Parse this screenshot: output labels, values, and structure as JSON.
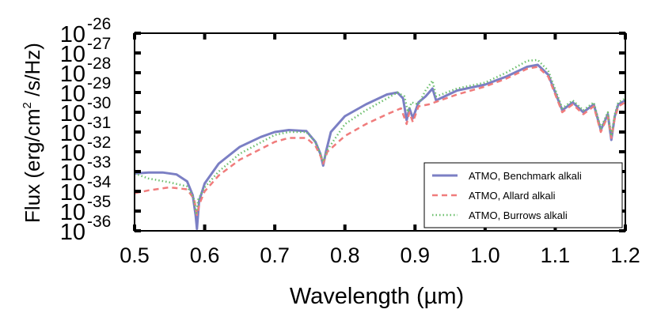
{
  "chart_data": {
    "type": "line",
    "title": "",
    "xlabel": "Wavelength (µm)",
    "ylabel_parts": {
      "main": "Flux (erg/cm",
      "sup": "2",
      "tail": " /s/Hz)"
    },
    "xlim": [
      0.5,
      1.2
    ],
    "ylim_log10": [
      -36,
      -26
    ],
    "y_scale": "log",
    "grid": false,
    "legend_position": "bottom-right",
    "x_ticks": [
      {
        "value": 0.5,
        "label": "0.5"
      },
      {
        "value": 0.6,
        "label": "0.6"
      },
      {
        "value": 0.7,
        "label": "0.7"
      },
      {
        "value": 0.8,
        "label": "0.8"
      },
      {
        "value": 0.9,
        "label": "0.9"
      },
      {
        "value": 1.0,
        "label": "1.0"
      },
      {
        "value": 1.1,
        "label": "1.1"
      },
      {
        "value": 1.2,
        "label": "1.2"
      }
    ],
    "y_ticks": [
      {
        "value": -26,
        "base": "10",
        "exp": "-26"
      },
      {
        "value": -27,
        "base": "10",
        "exp": "-27"
      },
      {
        "value": -28,
        "base": "10",
        "exp": "-28"
      },
      {
        "value": -29,
        "base": "10",
        "exp": "-29"
      },
      {
        "value": -30,
        "base": "10",
        "exp": "-30"
      },
      {
        "value": -31,
        "base": "10",
        "exp": "-31"
      },
      {
        "value": -32,
        "base": "10",
        "exp": "-32"
      },
      {
        "value": -33,
        "base": "10",
        "exp": "-33"
      },
      {
        "value": -34,
        "base": "10",
        "exp": "-34"
      },
      {
        "value": -35,
        "base": "10",
        "exp": "-35"
      },
      {
        "value": -36,
        "base": "10",
        "exp": "-36"
      }
    ],
    "series": [
      {
        "name": "ATMO, Benchmark alkali",
        "color": "#7b7fc4",
        "style": "solid",
        "x": [
          0.5,
          0.52,
          0.54,
          0.56,
          0.575,
          0.583,
          0.587,
          0.589,
          0.592,
          0.6,
          0.62,
          0.65,
          0.68,
          0.7,
          0.72,
          0.745,
          0.758,
          0.765,
          0.769,
          0.773,
          0.78,
          0.8,
          0.83,
          0.86,
          0.875,
          0.883,
          0.888,
          0.892,
          0.897,
          0.905,
          0.915,
          0.92,
          0.925,
          0.93,
          0.96,
          1.0,
          1.03,
          1.06,
          1.075,
          1.09,
          1.11,
          1.125,
          1.14,
          1.155,
          1.165,
          1.175,
          1.18,
          1.185,
          1.19,
          1.2
        ],
        "y": [
          -33.1,
          -33.05,
          -33.05,
          -33.15,
          -33.5,
          -34.2,
          -35.2,
          -35.9,
          -34.5,
          -33.6,
          -32.6,
          -31.75,
          -31.25,
          -31.0,
          -30.9,
          -30.95,
          -31.5,
          -32.1,
          -32.7,
          -32.0,
          -31.0,
          -30.2,
          -29.6,
          -29.1,
          -29.0,
          -29.3,
          -30.4,
          -29.8,
          -30.3,
          -29.5,
          -29.2,
          -29.0,
          -28.8,
          -29.4,
          -28.9,
          -28.6,
          -28.2,
          -27.7,
          -27.6,
          -28.1,
          -29.9,
          -29.5,
          -30.0,
          -29.6,
          -30.9,
          -30.1,
          -31.4,
          -30.2,
          -29.6,
          -29.4
        ]
      },
      {
        "name": "ATMO, Allard alkali",
        "color": "#f07c7c",
        "style": "dashed",
        "x": [
          0.5,
          0.52,
          0.55,
          0.575,
          0.585,
          0.589,
          0.593,
          0.6,
          0.62,
          0.65,
          0.7,
          0.72,
          0.745,
          0.758,
          0.765,
          0.769,
          0.775,
          0.8,
          0.83,
          0.86,
          0.88,
          0.888,
          0.892,
          0.897,
          0.905,
          0.92,
          0.96,
          1.0,
          1.03,
          1.06,
          1.075,
          1.09,
          1.11,
          1.125,
          1.14,
          1.155,
          1.165,
          1.175,
          1.18,
          1.185,
          1.19,
          1.2
        ],
        "y": [
          -34.1,
          -33.95,
          -33.8,
          -33.9,
          -34.4,
          -35.2,
          -34.6,
          -34.0,
          -33.2,
          -32.4,
          -31.5,
          -31.3,
          -31.3,
          -31.7,
          -32.2,
          -32.6,
          -32.0,
          -31.2,
          -30.6,
          -30.1,
          -29.8,
          -30.6,
          -30.0,
          -30.5,
          -29.7,
          -29.6,
          -29.1,
          -28.7,
          -28.3,
          -27.8,
          -27.7,
          -28.2,
          -30.0,
          -29.6,
          -30.1,
          -29.7,
          -31.0,
          -30.2,
          -31.3,
          -30.3,
          -29.7,
          -29.5
        ]
      },
      {
        "name": "ATMO, Burrows alkali",
        "color": "#6dbf6d",
        "style": "dotted",
        "x": [
          0.5,
          0.52,
          0.55,
          0.575,
          0.584,
          0.588,
          0.591,
          0.6,
          0.62,
          0.65,
          0.7,
          0.72,
          0.745,
          0.758,
          0.765,
          0.769,
          0.775,
          0.8,
          0.83,
          0.86,
          0.875,
          0.885,
          0.89,
          0.895,
          0.905,
          0.915,
          0.925,
          0.93,
          0.96,
          1.0,
          1.03,
          1.06,
          1.075,
          1.09,
          1.11,
          1.125,
          1.14,
          1.155,
          1.165,
          1.175,
          1.18,
          1.185,
          1.19,
          1.2
        ],
        "y": [
          -33.1,
          -33.35,
          -33.55,
          -33.75,
          -34.3,
          -35.1,
          -34.4,
          -33.8,
          -33.0,
          -32.1,
          -31.15,
          -31.0,
          -31.0,
          -31.5,
          -32.1,
          -32.5,
          -31.9,
          -30.6,
          -29.9,
          -29.3,
          -29.0,
          -29.2,
          -30.0,
          -29.5,
          -29.6,
          -28.9,
          -28.4,
          -29.2,
          -28.8,
          -28.5,
          -28.0,
          -27.4,
          -27.35,
          -27.9,
          -29.8,
          -29.4,
          -29.9,
          -29.5,
          -30.8,
          -30.0,
          -31.2,
          -30.1,
          -29.5,
          -29.3
        ]
      }
    ]
  }
}
